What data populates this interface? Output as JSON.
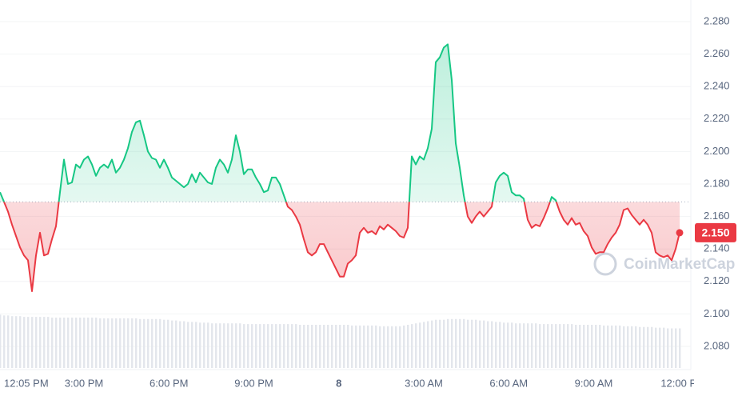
{
  "chart_data": {
    "type": "line",
    "series": [
      {
        "color_up": "#16c784",
        "color_down": "#ea3943",
        "values": [
          2.175,
          2.169,
          2.163,
          2.155,
          2.148,
          2.141,
          2.136,
          2.133,
          2.114,
          2.136,
          2.15,
          2.136,
          2.137,
          2.146,
          2.154,
          2.175,
          2.195,
          2.18,
          2.181,
          2.192,
          2.19,
          2.195,
          2.197,
          2.192,
          2.185,
          2.19,
          2.192,
          2.19,
          2.195,
          2.187,
          2.19,
          2.195,
          2.202,
          2.212,
          2.218,
          2.219,
          2.21,
          2.2,
          2.196,
          2.195,
          2.19,
          2.195,
          2.19,
          2.184,
          2.182,
          2.18,
          2.178,
          2.18,
          2.186,
          2.181,
          2.187,
          2.184,
          2.181,
          2.18,
          2.19,
          2.195,
          2.192,
          2.187,
          2.195,
          2.21,
          2.2,
          2.186,
          2.189,
          2.189,
          2.184,
          2.18,
          2.175,
          2.176,
          2.184,
          2.184,
          2.18,
          2.173,
          2.166,
          2.164,
          2.16,
          2.155,
          2.146,
          2.138,
          2.136,
          2.138,
          2.143,
          2.143,
          2.138,
          2.133,
          2.128,
          2.123,
          2.123,
          2.131,
          2.133,
          2.136,
          2.15,
          2.153,
          2.15,
          2.151,
          2.149,
          2.154,
          2.152,
          2.155,
          2.153,
          2.151,
          2.148,
          2.147,
          2.153,
          2.197,
          2.192,
          2.197,
          2.195,
          2.202,
          2.214,
          2.255,
          2.258,
          2.264,
          2.266,
          2.244,
          2.205,
          2.19,
          2.173,
          2.16,
          2.156,
          2.16,
          2.163,
          2.16,
          2.163,
          2.166,
          2.181,
          2.185,
          2.187,
          2.185,
          2.175,
          2.173,
          2.173,
          2.171,
          2.158,
          2.153,
          2.155,
          2.154,
          2.159,
          2.165,
          2.172,
          2.17,
          2.163,
          2.158,
          2.155,
          2.159,
          2.155,
          2.156,
          2.151,
          2.148,
          2.141,
          2.137,
          2.138,
          2.138,
          2.143,
          2.147,
          2.15,
          2.155,
          2.164,
          2.165,
          2.161,
          2.158,
          2.155,
          2.158,
          2.155,
          2.15,
          2.138,
          2.136,
          2.135,
          2.136,
          2.133,
          2.14,
          2.15
        ]
      }
    ],
    "baseline": 2.169,
    "price_label": "2.150",
    "watermark": "CoinMarketCap",
    "grid": true,
    "xlim": [
      0,
      170
    ],
    "xticks": [
      {
        "value": 1,
        "label": "12:05 PM"
      },
      {
        "value": 21,
        "label": "3:00 PM"
      },
      {
        "value": 42.25,
        "label": "6:00 PM"
      },
      {
        "value": 63.5,
        "label": "9:00 PM"
      },
      {
        "value": 84.75,
        "label": "8"
      },
      {
        "value": 106,
        "label": "3:00 AM"
      },
      {
        "value": 127.25,
        "label": "6:00 AM"
      },
      {
        "value": 148.5,
        "label": "9:00 AM"
      },
      {
        "value": 169.75,
        "label": "12:00 P"
      }
    ],
    "ylim": [
      2.0667,
      2.2933
    ],
    "yticks": [
      {
        "value": 2.08,
        "label": "2.080"
      },
      {
        "value": 2.1,
        "label": "2.100"
      },
      {
        "value": 2.12,
        "label": "2.120"
      },
      {
        "value": 2.14,
        "label": "2.140"
      },
      {
        "value": 2.16,
        "label": "2.160"
      },
      {
        "value": 2.18,
        "label": "2.180"
      },
      {
        "value": 2.2,
        "label": "2.200"
      },
      {
        "value": 2.22,
        "label": "2.220"
      },
      {
        "value": 2.24,
        "label": "2.240"
      },
      {
        "value": 2.26,
        "label": "2.260"
      },
      {
        "value": 2.28,
        "label": "2.280"
      }
    ],
    "volume": {
      "color": "#e3e6ec",
      "ylim": [
        0,
        100
      ],
      "values": [
        74,
        73,
        73,
        72,
        72,
        72,
        71,
        71,
        71,
        71,
        71,
        71,
        71,
        70,
        70,
        70,
        70,
        70,
        70,
        70,
        70,
        70,
        70,
        70,
        70,
        69,
        69,
        69,
        69,
        69,
        69,
        69,
        69,
        69,
        69,
        68,
        68,
        68,
        68,
        68,
        68,
        67,
        67,
        66,
        66,
        65,
        65,
        64,
        64,
        64,
        63,
        63,
        63,
        62,
        62,
        62,
        62,
        62,
        62,
        62,
        62,
        61,
        61,
        61,
        61,
        61,
        61,
        61,
        61,
        61,
        61,
        61,
        61,
        61,
        61,
        60,
        60,
        60,
        60,
        60,
        60,
        60,
        60,
        60,
        60,
        60,
        60,
        60,
        59,
        59,
        59,
        59,
        59,
        59,
        59,
        58,
        58,
        58,
        58,
        58,
        58,
        59,
        60,
        61,
        62,
        63,
        64,
        65,
        66,
        67,
        67,
        67,
        68,
        68,
        68,
        68,
        68,
        67,
        67,
        67,
        66,
        66,
        65,
        65,
        64,
        64,
        63,
        63,
        63,
        62,
        62,
        62,
        62,
        62,
        62,
        61,
        61,
        61,
        61,
        61,
        61,
        61,
        61,
        61,
        60,
        60,
        60,
        60,
        60,
        60,
        60,
        59,
        59,
        59,
        59,
        59,
        58,
        58,
        58,
        58,
        57,
        57,
        57,
        57,
        56,
        56,
        56,
        55,
        55,
        55,
        55
      ]
    }
  }
}
